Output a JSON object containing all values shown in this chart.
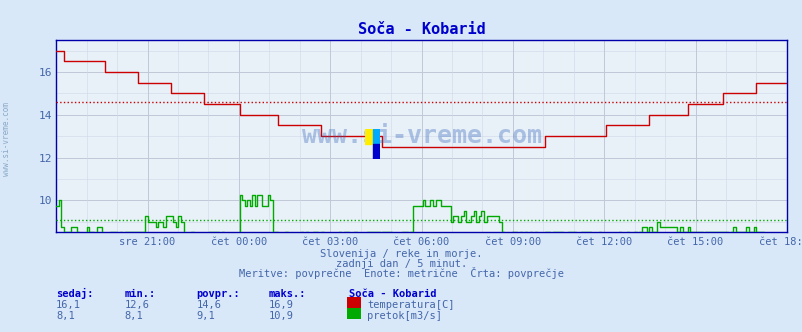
{
  "title": "Soča - Kobarid",
  "bg_color": "#d8e8f8",
  "plot_bg_color": "#e8f0f8",
  "grid_color": "#c0c8d8",
  "grid_minor_color": "#d0d8e8",
  "title_color": "#0000cc",
  "text_color": "#4466aa",
  "watermark": "www.si-vreme.com",
  "subtitle1": "Slovenija / reke in morje.",
  "subtitle2": "zadnji dan / 5 minut.",
  "subtitle3": "Meritve: povprečne  Enote: metrične  Črta: povprečje",
  "xlabel_ticks": [
    "sre 21:00",
    "čet 00:00",
    "čet 03:00",
    "čet 06:00",
    "čet 09:00",
    "čet 12:00",
    "čet 15:00",
    "čet 18:00"
  ],
  "ylim": [
    8.5,
    17.5
  ],
  "yticks": [
    10,
    12,
    14,
    16
  ],
  "temp_avg": 14.6,
  "flow_avg": 9.1,
  "temp_color": "#cc0000",
  "flow_color": "#00aa00",
  "legend_station": "Soča - Kobarid",
  "legend_temp": "temperatura[C]",
  "legend_flow": "pretok[m3/s]",
  "stats_headers": [
    "sedaj:",
    "min.:",
    "povpr.:",
    "maks.:"
  ],
  "stats_temp": [
    "16,1",
    "12,6",
    "14,6",
    "16,9"
  ],
  "stats_flow": [
    "8,1",
    "8,1",
    "9,1",
    "10,9"
  ],
  "n_points": 288
}
